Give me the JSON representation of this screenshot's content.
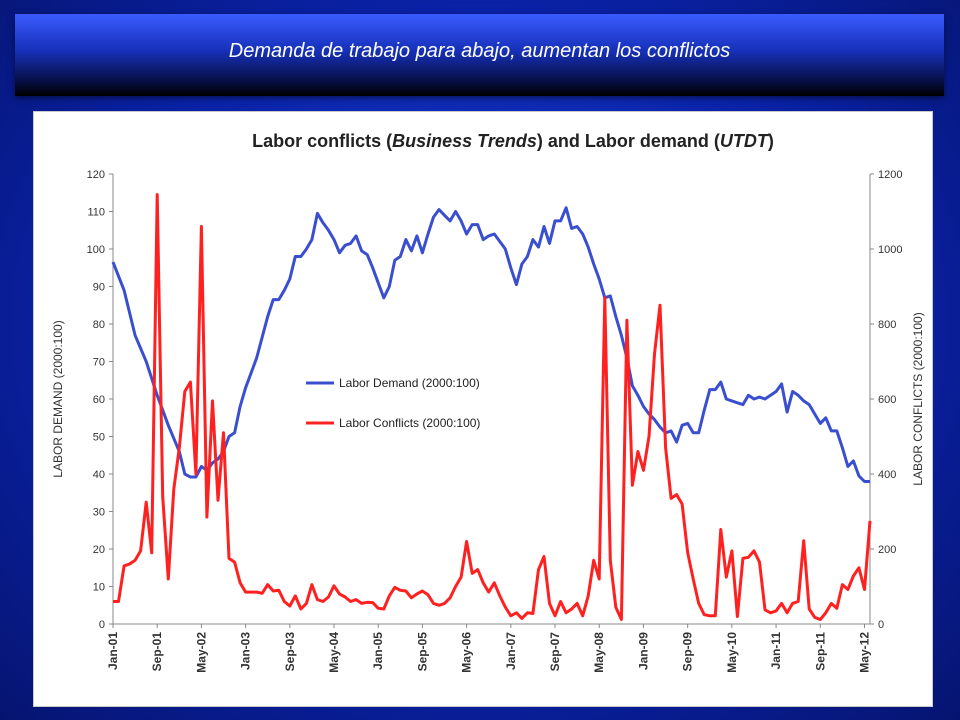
{
  "slide": {
    "title": "Demanda de trabajo para abajo, aumentan los conflictos",
    "background_color": "#0a22a8"
  },
  "chart_data": {
    "type": "line",
    "title_parts": [
      {
        "text": "Labor conflicts (",
        "italic": false
      },
      {
        "text": "Business Trends",
        "italic": true
      },
      {
        "text": ") and Labor demand (",
        "italic": false
      },
      {
        "text": "UTDT",
        "italic": true
      },
      {
        "text": ")",
        "italic": false
      }
    ],
    "ylabel_left": "LABOR DEMAND (2000:100)",
    "ylabel_right": "LABOR CONFLICTS (2000:100)",
    "ylim_left": [
      0,
      120
    ],
    "ylim_right": [
      0,
      1200
    ],
    "yticks_left": [
      "0",
      "10",
      "20",
      "30",
      "40",
      "50",
      "60",
      "70",
      "80",
      "90",
      "100",
      "110",
      "120"
    ],
    "yticks_right": [
      "0",
      "200",
      "400",
      "600",
      "800",
      "1000",
      "1200"
    ],
    "x_index_range": [
      0,
      137
    ],
    "xticks": [
      {
        "i": 0,
        "label": "Jan-01"
      },
      {
        "i": 8,
        "label": "Sep-01"
      },
      {
        "i": 16,
        "label": "May-02"
      },
      {
        "i": 24,
        "label": "Jan-03"
      },
      {
        "i": 32,
        "label": "Sep-03"
      },
      {
        "i": 40,
        "label": "May-04"
      },
      {
        "i": 48,
        "label": "Jan-05"
      },
      {
        "i": 56,
        "label": "Sep-05"
      },
      {
        "i": 64,
        "label": "May-06"
      },
      {
        "i": 72,
        "label": "Jan-07"
      },
      {
        "i": 80,
        "label": "Sep-07"
      },
      {
        "i": 88,
        "label": "May-08"
      },
      {
        "i": 96,
        "label": "Jan-09"
      },
      {
        "i": 104,
        "label": "Sep-09"
      },
      {
        "i": 112,
        "label": "May-10"
      },
      {
        "i": 120,
        "label": "Jan-11"
      },
      {
        "i": 128,
        "label": "Sep-11"
      },
      {
        "i": 136,
        "label": "May-12"
      }
    ],
    "legend_position": "center-left",
    "series": [
      {
        "name": "Labor Demand (2000:100)",
        "axis": "left",
        "color": "#3a4fd0",
        "points": [
          [
            0,
            96.5
          ],
          [
            2,
            89
          ],
          [
            4,
            77
          ],
          [
            6,
            70
          ],
          [
            8,
            61
          ],
          [
            10,
            53
          ],
          [
            12,
            46
          ],
          [
            13,
            40
          ],
          [
            14,
            39.2
          ],
          [
            15,
            39.2
          ],
          [
            16,
            42
          ],
          [
            17,
            41
          ],
          [
            18,
            43
          ],
          [
            19,
            44
          ],
          [
            20,
            46
          ],
          [
            21,
            50
          ],
          [
            22,
            51
          ],
          [
            23,
            58
          ],
          [
            24,
            63
          ],
          [
            26,
            71
          ],
          [
            28,
            82
          ],
          [
            29,
            86.5
          ],
          [
            30,
            86.5
          ],
          [
            31,
            89
          ],
          [
            32,
            92
          ],
          [
            33,
            98
          ],
          [
            34,
            98
          ],
          [
            35,
            100
          ],
          [
            36,
            102.5
          ],
          [
            37,
            109.5
          ],
          [
            38,
            107
          ],
          [
            39,
            105
          ],
          [
            40,
            102.5
          ],
          [
            41,
            99
          ],
          [
            42,
            101
          ],
          [
            43,
            101.5
          ],
          [
            44,
            103.5
          ],
          [
            45,
            99.5
          ],
          [
            46,
            98.5
          ],
          [
            47,
            95
          ],
          [
            48,
            91
          ],
          [
            49,
            87
          ],
          [
            50,
            90
          ],
          [
            51,
            97
          ],
          [
            52,
            98
          ],
          [
            53,
            102.5
          ],
          [
            54,
            99.5
          ],
          [
            55,
            103.5
          ],
          [
            56,
            99
          ],
          [
            57,
            104
          ],
          [
            58,
            108.5
          ],
          [
            59,
            110.5
          ],
          [
            60,
            109
          ],
          [
            61,
            107.5
          ],
          [
            62,
            110
          ],
          [
            63,
            107.5
          ],
          [
            64,
            104
          ],
          [
            65,
            106.5
          ],
          [
            66,
            106.5
          ],
          [
            67,
            102.5
          ],
          [
            68,
            103.5
          ],
          [
            69,
            104
          ],
          [
            70,
            102
          ],
          [
            71,
            100
          ],
          [
            72,
            95
          ],
          [
            73,
            90.5
          ],
          [
            74,
            96
          ],
          [
            75,
            98
          ],
          [
            76,
            102.5
          ],
          [
            77,
            100.5
          ],
          [
            78,
            106
          ],
          [
            79,
            101.5
          ],
          [
            80,
            107.5
          ],
          [
            81,
            107.5
          ],
          [
            82,
            111
          ],
          [
            83,
            105.5
          ],
          [
            84,
            106
          ],
          [
            85,
            104
          ],
          [
            86,
            100.5
          ],
          [
            87,
            96
          ],
          [
            88,
            92
          ],
          [
            89,
            87
          ],
          [
            90,
            87.5
          ],
          [
            91,
            82
          ],
          [
            92,
            77
          ],
          [
            93,
            71
          ],
          [
            94,
            63.5
          ],
          [
            95,
            61
          ],
          [
            96,
            58
          ],
          [
            97,
            56
          ],
          [
            98,
            54.5
          ],
          [
            99,
            52.5
          ],
          [
            100,
            51
          ],
          [
            101,
            51.5
          ],
          [
            102,
            48.5
          ],
          [
            103,
            53
          ],
          [
            104,
            53.5
          ],
          [
            105,
            51
          ],
          [
            106,
            51
          ],
          [
            107,
            57
          ],
          [
            108,
            62.5
          ],
          [
            109,
            62.5
          ],
          [
            110,
            64.5
          ],
          [
            111,
            60
          ],
          [
            112,
            59.5
          ],
          [
            113,
            59
          ],
          [
            114,
            58.5
          ],
          [
            115,
            61
          ],
          [
            116,
            60
          ],
          [
            117,
            60.5
          ],
          [
            118,
            60
          ],
          [
            119,
            61
          ],
          [
            120,
            62
          ],
          [
            121,
            64
          ],
          [
            122,
            56.5
          ],
          [
            123,
            62
          ],
          [
            124,
            61
          ],
          [
            125,
            59.5
          ],
          [
            126,
            58.5
          ],
          [
            127,
            56
          ],
          [
            128,
            53.5
          ],
          [
            129,
            55
          ],
          [
            130,
            51.5
          ],
          [
            131,
            51.5
          ],
          [
            132,
            47
          ],
          [
            133,
            42
          ],
          [
            134,
            43.5
          ],
          [
            135,
            39.5
          ],
          [
            136,
            38
          ],
          [
            137,
            38
          ]
        ]
      },
      {
        "name": "Labor Conflicts (2000:100)",
        "axis": "right",
        "color": "#ff2020",
        "points": [
          [
            0,
            60
          ],
          [
            1,
            60
          ],
          [
            2,
            155
          ],
          [
            3,
            160
          ],
          [
            4,
            170
          ],
          [
            5,
            195
          ],
          [
            6,
            325
          ],
          [
            7,
            190
          ],
          [
            8,
            1145
          ],
          [
            9,
            340
          ],
          [
            10,
            120
          ],
          [
            11,
            360
          ],
          [
            12,
            470
          ],
          [
            13,
            620
          ],
          [
            14,
            645
          ],
          [
            15,
            400
          ],
          [
            16,
            1060
          ],
          [
            17,
            285
          ],
          [
            18,
            595
          ],
          [
            19,
            330
          ],
          [
            20,
            510
          ],
          [
            21,
            175
          ],
          [
            22,
            165
          ],
          [
            23,
            110
          ],
          [
            24,
            85
          ],
          [
            26,
            85
          ],
          [
            27,
            82
          ],
          [
            28,
            105
          ],
          [
            29,
            88
          ],
          [
            30,
            90
          ],
          [
            31,
            60
          ],
          [
            32,
            48
          ],
          [
            33,
            75
          ],
          [
            34,
            40
          ],
          [
            35,
            55
          ],
          [
            36,
            105
          ],
          [
            37,
            65
          ],
          [
            38,
            60
          ],
          [
            39,
            72
          ],
          [
            40,
            102
          ],
          [
            41,
            80
          ],
          [
            42,
            72
          ],
          [
            43,
            60
          ],
          [
            44,
            65
          ],
          [
            45,
            55
          ],
          [
            46,
            58
          ],
          [
            47,
            57
          ],
          [
            48,
            42
          ],
          [
            49,
            40
          ],
          [
            50,
            75
          ],
          [
            51,
            98
          ],
          [
            52,
            90
          ],
          [
            53,
            88
          ],
          [
            54,
            70
          ],
          [
            55,
            80
          ],
          [
            56,
            88
          ],
          [
            57,
            78
          ],
          [
            58,
            55
          ],
          [
            59,
            50
          ],
          [
            60,
            55
          ],
          [
            61,
            70
          ],
          [
            62,
            100
          ],
          [
            63,
            125
          ],
          [
            64,
            220
          ],
          [
            65,
            135
          ],
          [
            66,
            145
          ],
          [
            67,
            110
          ],
          [
            68,
            85
          ],
          [
            69,
            110
          ],
          [
            70,
            75
          ],
          [
            71,
            45
          ],
          [
            72,
            22
          ],
          [
            73,
            30
          ],
          [
            74,
            15
          ],
          [
            75,
            30
          ],
          [
            76,
            28
          ],
          [
            77,
            145
          ],
          [
            78,
            180
          ],
          [
            79,
            55
          ],
          [
            80,
            22
          ],
          [
            81,
            60
          ],
          [
            82,
            30
          ],
          [
            83,
            40
          ],
          [
            84,
            55
          ],
          [
            85,
            22
          ],
          [
            86,
            75
          ],
          [
            87,
            170
          ],
          [
            88,
            120
          ],
          [
            89,
            870
          ],
          [
            90,
            170
          ],
          [
            91,
            45
          ],
          [
            92,
            12
          ],
          [
            93,
            810
          ],
          [
            94,
            370
          ],
          [
            95,
            460
          ],
          [
            96,
            410
          ],
          [
            97,
            500
          ],
          [
            98,
            720
          ],
          [
            99,
            850
          ],
          [
            100,
            470
          ],
          [
            101,
            335
          ],
          [
            102,
            345
          ],
          [
            103,
            320
          ],
          [
            104,
            190
          ],
          [
            105,
            120
          ],
          [
            106,
            55
          ],
          [
            107,
            25
          ],
          [
            108,
            22
          ],
          [
            109,
            22
          ],
          [
            110,
            252
          ],
          [
            111,
            125
          ],
          [
            112,
            195
          ],
          [
            113,
            20
          ],
          [
            114,
            175
          ],
          [
            115,
            178
          ],
          [
            116,
            195
          ],
          [
            117,
            165
          ],
          [
            118,
            38
          ],
          [
            119,
            30
          ],
          [
            120,
            35
          ],
          [
            121,
            55
          ],
          [
            122,
            30
          ],
          [
            123,
            55
          ],
          [
            124,
            60
          ],
          [
            125,
            222
          ],
          [
            126,
            40
          ],
          [
            127,
            18
          ],
          [
            128,
            12
          ],
          [
            129,
            30
          ],
          [
            130,
            55
          ],
          [
            131,
            42
          ],
          [
            132,
            105
          ],
          [
            133,
            92
          ],
          [
            134,
            128
          ],
          [
            135,
            150
          ],
          [
            136,
            92
          ],
          [
            137,
            275
          ]
        ]
      }
    ]
  }
}
